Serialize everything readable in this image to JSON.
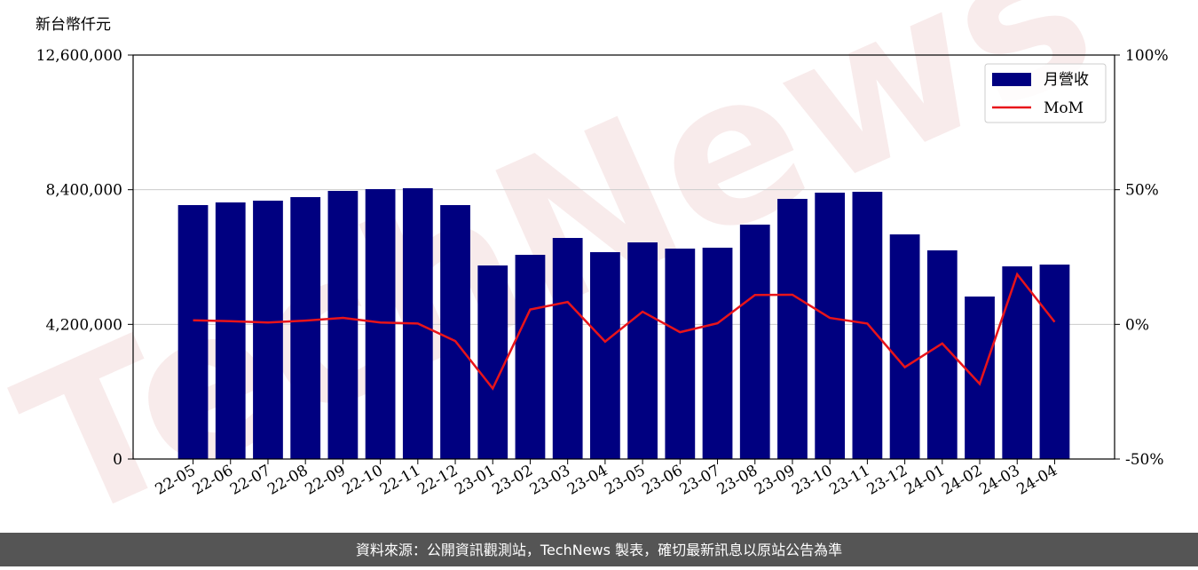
{
  "chart_data": {
    "type": "bar_line",
    "y_label": "新台幣仟元",
    "watermark": "TechNews",
    "footer": "資料來源：公開資訊觀測站，TechNews 製表，確切最新訊息以原站公告為準",
    "categories": [
      "22-05",
      "22-06",
      "22-07",
      "22-08",
      "22-09",
      "22-10",
      "22-11",
      "22-12",
      "23-01",
      "23-02",
      "23-03",
      "23-04",
      "23-05",
      "23-06",
      "23-07",
      "23-08",
      "23-09",
      "23-10",
      "23-11",
      "23-12",
      "24-01",
      "24-02",
      "24-03",
      "24-04"
    ],
    "series": [
      {
        "name": "月營收",
        "type": "bar",
        "color": "#000080",
        "values": [
          7920000,
          8003000,
          8058000,
          8169000,
          8363000,
          8418000,
          8446000,
          7920000,
          6037000,
          6369000,
          6895000,
          6452000,
          6757000,
          6563000,
          6591000,
          7311000,
          8114000,
          8308000,
          8335000,
          7006000,
          6508000,
          5068000,
          6009000,
          6065000
        ]
      },
      {
        "name": "MoM",
        "type": "line",
        "axis": "y2",
        "color": "#e8141a",
        "values": [
          1.5,
          1.2,
          0.7,
          1.4,
          2.4,
          0.7,
          0.3,
          -6.2,
          -23.8,
          5.5,
          8.3,
          -6.4,
          4.7,
          -2.9,
          0.4,
          10.9,
          11.0,
          2.4,
          0.3,
          -15.9,
          -7.1,
          -22.1,
          18.6,
          0.9
        ]
      }
    ],
    "ylim": [
      0,
      12600000
    ],
    "yticks": [
      {
        "value": 0,
        "label": "0"
      },
      {
        "value": 4200000,
        "label": "4,200,000"
      },
      {
        "value": 8400000,
        "label": "8,400,000"
      },
      {
        "value": 12600000,
        "label": "12,600,000"
      }
    ],
    "y2lim": [
      -50,
      100
    ],
    "y2ticks": [
      {
        "value": -50,
        "label": "-50%"
      },
      {
        "value": 0,
        "label": "0%"
      },
      {
        "value": 50,
        "label": "50%"
      },
      {
        "value": 100,
        "label": "100%"
      }
    ],
    "grid": true,
    "legend": "upper right"
  }
}
